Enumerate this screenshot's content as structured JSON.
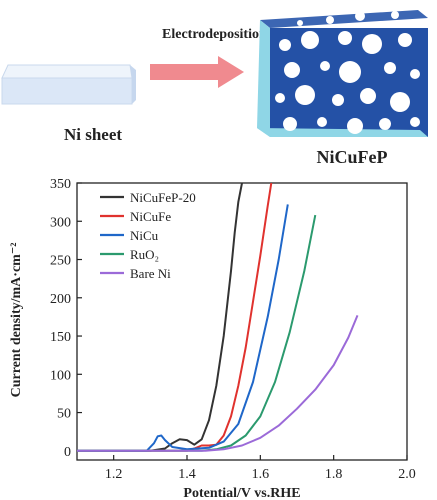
{
  "scheme": {
    "process_label": "Electrodeposition",
    "substrate_label": "Ni sheet",
    "product_label": "NiCuFeP",
    "colors": {
      "sheet": "#dbe7f7",
      "arrow": "#f08a8f",
      "block": "#2451a6",
      "block_edge": "#8fd6e6"
    }
  },
  "chart_data": {
    "type": "line",
    "xlabel": "Potential/V vs.RHE",
    "ylabel": "Current density/mA·cm⁻²",
    "xlim": [
      1.1,
      2.0
    ],
    "ylim": [
      -12,
      350
    ],
    "xticks": [
      1.2,
      1.4,
      1.6,
      1.8,
      2.0
    ],
    "xtick_labels": [
      "1.2",
      "1.4",
      "1.6",
      "1.8",
      "2.0"
    ],
    "yticks": [
      0,
      50,
      100,
      150,
      200,
      250,
      300,
      350
    ],
    "ytick_labels": [
      "0",
      "50",
      "100",
      "150",
      "200",
      "250",
      "300",
      "350"
    ],
    "legend_position": "top-left",
    "grid": false,
    "series": [
      {
        "name": "NiCuFeP-20",
        "color": "#333333",
        "x": [
          1.1,
          1.3,
          1.34,
          1.36,
          1.38,
          1.4,
          1.42,
          1.44,
          1.46,
          1.48,
          1.5,
          1.52,
          1.53,
          1.54,
          1.55
        ],
        "y": [
          0,
          0,
          3,
          10,
          15,
          14,
          8,
          15,
          40,
          85,
          150,
          235,
          285,
          325,
          350
        ]
      },
      {
        "name": "NiCuFe",
        "color": "#e0322e",
        "x": [
          1.1,
          1.4,
          1.42,
          1.44,
          1.46,
          1.48,
          1.5,
          1.52,
          1.54,
          1.56,
          1.58,
          1.6,
          1.62,
          1.63
        ],
        "y": [
          0,
          0,
          3,
          7,
          7,
          8,
          20,
          45,
          85,
          135,
          195,
          255,
          320,
          350
        ]
      },
      {
        "name": "NiCu",
        "color": "#1f67c9",
        "x": [
          1.1,
          1.29,
          1.31,
          1.32,
          1.33,
          1.34,
          1.36,
          1.4,
          1.46,
          1.5,
          1.54,
          1.58,
          1.62,
          1.65,
          1.675
        ],
        "y": [
          0,
          0,
          10,
          19,
          20,
          14,
          5,
          2,
          4,
          12,
          35,
          90,
          175,
          250,
          322
        ]
      },
      {
        "name": "RuO₂",
        "color": "#2b9a6e",
        "x": [
          1.1,
          1.44,
          1.48,
          1.52,
          1.56,
          1.6,
          1.64,
          1.68,
          1.72,
          1.75
        ],
        "y": [
          0,
          0,
          2,
          7,
          20,
          45,
          90,
          155,
          235,
          308
        ]
      },
      {
        "name": "Bare Ni",
        "color": "#9b6ad8",
        "x": [
          1.1,
          1.45,
          1.5,
          1.55,
          1.6,
          1.65,
          1.7,
          1.75,
          1.8,
          1.84,
          1.865
        ],
        "y": [
          0,
          0,
          2,
          7,
          17,
          33,
          55,
          80,
          112,
          148,
          177
        ]
      }
    ]
  }
}
